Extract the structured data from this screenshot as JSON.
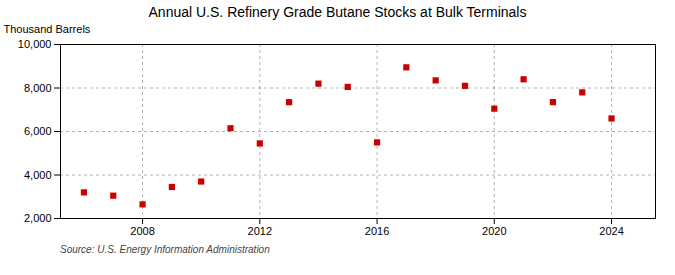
{
  "chart_data": {
    "type": "scatter",
    "title": "Annual U.S. Refinery Grade Butane Stocks at Bulk Terminals",
    "ylabel": "Thousand Barrels",
    "source": "Source: U.S. Energy Information Administration",
    "x": [
      2006,
      2007,
      2008,
      2009,
      2010,
      2011,
      2012,
      2013,
      2014,
      2015,
      2016,
      2017,
      2018,
      2019,
      2020,
      2021,
      2022,
      2023,
      2024
    ],
    "values": [
      3200,
      3050,
      2650,
      3450,
      3700,
      6150,
      5450,
      7350,
      8200,
      8050,
      5500,
      8950,
      8350,
      8100,
      7050,
      8400,
      7350,
      7800,
      6600
    ],
    "color": "#cc0000",
    "marker": "square",
    "xlim": [
      2005.2,
      2025.5
    ],
    "xticks": [
      2008,
      2012,
      2016,
      2020,
      2024
    ],
    "ylim": [
      2000,
      10000
    ],
    "yticks": [
      {
        "value": 2000,
        "label": "2,000"
      },
      {
        "value": 4000,
        "label": "4,000"
      },
      {
        "value": 6000,
        "label": "6,000"
      },
      {
        "value": 8000,
        "label": "8,000"
      },
      {
        "value": 10000,
        "label": "10,000"
      }
    ],
    "grid": true
  }
}
